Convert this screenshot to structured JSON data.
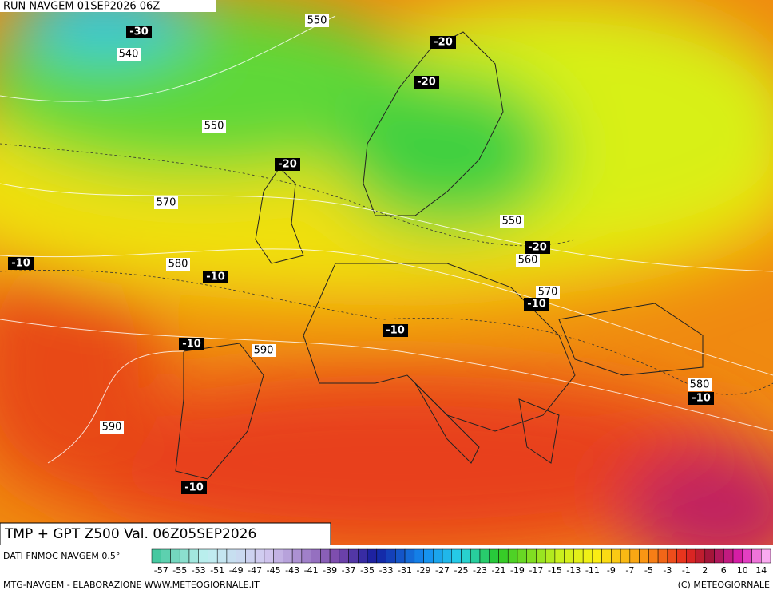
{
  "header": {
    "run": "RUN NAVGEM 01SEP2026 06Z"
  },
  "map": {
    "contour_labels": [
      "550",
      "540",
      "550",
      "570",
      "580",
      "590",
      "590",
      "550",
      "560",
      "570",
      "580"
    ],
    "temperature_labels": [
      "-30",
      "-20",
      "-20",
      "-20",
      "-20",
      "-10",
      "-10",
      "-10",
      "-10",
      "-10",
      "-10",
      "-10"
    ]
  },
  "footer": {
    "title": "TMP + GPT Z500 Val. 06Z05SEP2026",
    "source": "DATI FNMOC NAVGEM 0.5°",
    "scale_labels": [
      "-57",
      "-55",
      "-53",
      "-51",
      "-49",
      "-47",
      "-45",
      "-43",
      "-41",
      "-39",
      "-37",
      "-35",
      "-33",
      "-31",
      "-29",
      "-27",
      "-25",
      "-23",
      "-21",
      "-19",
      "-17",
      "-15",
      "-13",
      "-11",
      "-9",
      "-7",
      "-5",
      "-3",
      "-1",
      "2",
      "6",
      "10",
      "14"
    ],
    "credit": "MTG-NAVGEM - ELABORAZIONE WWW.METEOGIORNALE.IT",
    "copyright": "(C) METEOGIORNALE"
  }
}
